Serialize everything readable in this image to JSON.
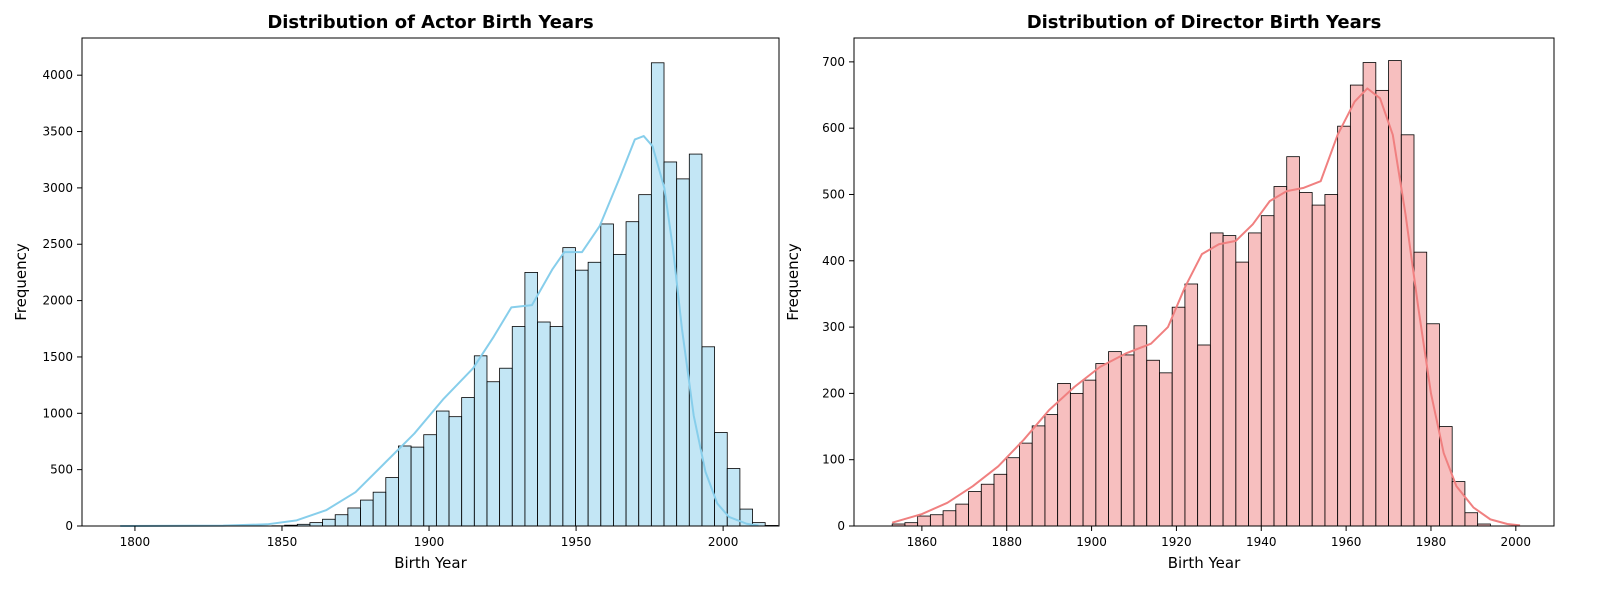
{
  "chart_data": [
    {
      "type": "bar",
      "title": "Distribution of Actor Birth Years",
      "xlabel": "Birth Year",
      "ylabel": "Frequency",
      "xlim": [
        1782,
        2019
      ],
      "ylim": [
        0,
        4330
      ],
      "xticks": [
        1800,
        1850,
        1900,
        1950,
        2000
      ],
      "yticks": [
        0,
        500,
        1000,
        1500,
        2000,
        2500,
        3000,
        3500,
        4000
      ],
      "grid": false,
      "kde": true,
      "bar_color": "#87ceeb",
      "bar_fill_opacity": 0.5,
      "line_color": "#87ceeb",
      "bin_start": 1795,
      "bin_width": 4.3,
      "values": [
        0,
        0,
        0,
        0,
        0,
        0,
        0,
        0,
        0,
        0,
        0,
        0,
        2,
        7,
        15,
        30,
        60,
        100,
        160,
        230,
        300,
        430,
        710,
        700,
        810,
        1020,
        970,
        1140,
        1510,
        1280,
        1400,
        1770,
        2250,
        1810,
        1770,
        2470,
        2270,
        2340,
        2680,
        2410,
        2700,
        2940,
        4110,
        3230,
        3080,
        3300,
        1590,
        830,
        510,
        150,
        30,
        5
      ],
      "kde_points": [
        [
          1795,
          0
        ],
        [
          1830,
          3
        ],
        [
          1845,
          15
        ],
        [
          1855,
          50
        ],
        [
          1865,
          140
        ],
        [
          1875,
          300
        ],
        [
          1885,
          560
        ],
        [
          1895,
          820
        ],
        [
          1905,
          1130
        ],
        [
          1915,
          1400
        ],
        [
          1922,
          1680
        ],
        [
          1928,
          1940
        ],
        [
          1935,
          1960
        ],
        [
          1942,
          2280
        ],
        [
          1946,
          2430
        ],
        [
          1952,
          2430
        ],
        [
          1958,
          2660
        ],
        [
          1965,
          3100
        ],
        [
          1970,
          3430
        ],
        [
          1973,
          3460
        ],
        [
          1976,
          3370
        ],
        [
          1980,
          3000
        ],
        [
          1983,
          2450
        ],
        [
          1986,
          1750
        ],
        [
          1990,
          980
        ],
        [
          1994,
          480
        ],
        [
          1998,
          200
        ],
        [
          2002,
          80
        ],
        [
          2008,
          20
        ],
        [
          2012,
          3
        ]
      ]
    },
    {
      "type": "bar",
      "title": "Distribution of Director Birth Years",
      "xlabel": "Birth Year",
      "ylabel": "Frequency",
      "xlim": [
        1844,
        2009
      ],
      "ylim": [
        0,
        736
      ],
      "xticks": [
        1860,
        1880,
        1900,
        1920,
        1940,
        1960,
        1980,
        2000
      ],
      "yticks": [
        0,
        100,
        200,
        300,
        400,
        500,
        600,
        700
      ],
      "grid": false,
      "kde": true,
      "bar_color": "#f08080",
      "bar_fill_opacity": 0.5,
      "line_color": "#f08080",
      "bin_start": 1853,
      "bin_width": 3,
      "values": [
        3,
        5,
        15,
        17,
        23,
        33,
        52,
        63,
        78,
        103,
        125,
        151,
        168,
        215,
        200,
        220,
        245,
        263,
        258,
        302,
        250,
        231,
        330,
        365,
        273,
        442,
        438,
        398,
        442,
        468,
        512,
        557,
        503,
        484,
        500,
        603,
        665,
        699,
        657,
        702,
        590,
        413,
        305,
        150,
        67,
        20,
        3,
        0,
        0,
        0,
        0,
        0
      ],
      "kde_points": [
        [
          1853,
          5
        ],
        [
          1860,
          18
        ],
        [
          1866,
          35
        ],
        [
          1872,
          60
        ],
        [
          1878,
          90
        ],
        [
          1884,
          130
        ],
        [
          1890,
          175
        ],
        [
          1896,
          210
        ],
        [
          1902,
          240
        ],
        [
          1908,
          260
        ],
        [
          1914,
          275
        ],
        [
          1918,
          300
        ],
        [
          1922,
          360
        ],
        [
          1926,
          410
        ],
        [
          1930,
          425
        ],
        [
          1934,
          430
        ],
        [
          1938,
          455
        ],
        [
          1942,
          490
        ],
        [
          1946,
          505
        ],
        [
          1950,
          510
        ],
        [
          1954,
          520
        ],
        [
          1958,
          590
        ],
        [
          1962,
          640
        ],
        [
          1965,
          660
        ],
        [
          1968,
          645
        ],
        [
          1971,
          590
        ],
        [
          1974,
          470
        ],
        [
          1977,
          330
        ],
        [
          1980,
          200
        ],
        [
          1983,
          110
        ],
        [
          1986,
          60
        ],
        [
          1990,
          28
        ],
        [
          1994,
          10
        ],
        [
          1998,
          3
        ],
        [
          2001,
          1
        ]
      ]
    }
  ]
}
